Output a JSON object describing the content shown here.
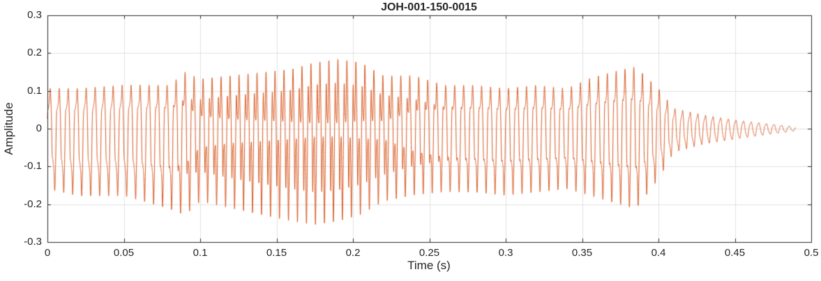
{
  "chart_data": {
    "type": "line",
    "title": "JOH-001-150-0015",
    "xlabel": "Time (s)",
    "ylabel": "Amplitude",
    "xlim": [
      0,
      0.5
    ],
    "ylim": [
      -0.3,
      0.3
    ],
    "xticks": [
      0,
      0.05,
      0.1,
      0.15,
      0.2,
      0.25,
      0.3,
      0.35,
      0.4,
      0.45,
      0.5
    ],
    "xtick_labels": [
      "0",
      "0.05",
      "0.1",
      "0.15",
      "0.2",
      "0.25",
      "0.3",
      "0.35",
      "0.4",
      "0.45",
      "0.5"
    ],
    "yticks": [
      -0.3,
      -0.2,
      -0.1,
      0,
      0.1,
      0.2,
      0.3
    ],
    "ytick_labels": [
      "-0.3",
      "-0.2",
      "-0.1",
      "0",
      "0.1",
      "0.2",
      "0.3"
    ],
    "grid": true,
    "legend": "none",
    "colors": {
      "line": "#D95319",
      "grid": "#E2E2E2",
      "axis": "#262626",
      "text": "#262626",
      "background": "#FFFFFF"
    },
    "waveform": {
      "signal_end_s": 0.49,
      "harmonic_phase": 1.2,
      "envelope": [
        {
          "t": 0.0,
          "hi": 0.12,
          "lo": -0.18,
          "h2": 0.25,
          "f": 170
        },
        {
          "t": 0.02,
          "hi": 0.12,
          "lo": -0.2,
          "h2": 0.25,
          "f": 170
        },
        {
          "t": 0.05,
          "hi": 0.13,
          "lo": -0.2,
          "h2": 0.25,
          "f": 170
        },
        {
          "t": 0.08,
          "hi": 0.13,
          "lo": -0.24,
          "h2": 0.3,
          "f": 170
        },
        {
          "t": 0.09,
          "hi": 0.17,
          "lo": -0.26,
          "h2": 0.4,
          "f": 170
        },
        {
          "t": 0.1,
          "hi": 0.15,
          "lo": -0.22,
          "h2": 0.6,
          "f": 170
        },
        {
          "t": 0.12,
          "hi": 0.16,
          "lo": -0.24,
          "h2": 0.7,
          "f": 170
        },
        {
          "t": 0.14,
          "hi": 0.17,
          "lo": -0.26,
          "h2": 0.75,
          "f": 170
        },
        {
          "t": 0.16,
          "hi": 0.18,
          "lo": -0.28,
          "h2": 0.8,
          "f": 170
        },
        {
          "t": 0.175,
          "hi": 0.2,
          "lo": -0.29,
          "h2": 0.85,
          "f": 170
        },
        {
          "t": 0.19,
          "hi": 0.21,
          "lo": -0.28,
          "h2": 0.85,
          "f": 170
        },
        {
          "t": 0.205,
          "hi": 0.2,
          "lo": -0.26,
          "h2": 0.8,
          "f": 170
        },
        {
          "t": 0.22,
          "hi": 0.16,
          "lo": -0.22,
          "h2": 0.75,
          "f": 170
        },
        {
          "t": 0.24,
          "hi": 0.16,
          "lo": -0.2,
          "h2": 0.5,
          "f": 170
        },
        {
          "t": 0.26,
          "hi": 0.13,
          "lo": -0.19,
          "h2": 0.35,
          "f": 170
        },
        {
          "t": 0.28,
          "hi": 0.13,
          "lo": -0.19,
          "h2": 0.3,
          "f": 170
        },
        {
          "t": 0.3,
          "hi": 0.12,
          "lo": -0.2,
          "h2": 0.3,
          "f": 170
        },
        {
          "t": 0.32,
          "hi": 0.13,
          "lo": -0.19,
          "h2": 0.3,
          "f": 170
        },
        {
          "t": 0.34,
          "hi": 0.12,
          "lo": -0.18,
          "h2": 0.3,
          "f": 170
        },
        {
          "t": 0.355,
          "hi": 0.15,
          "lo": -0.2,
          "h2": 0.3,
          "f": 170
        },
        {
          "t": 0.37,
          "hi": 0.17,
          "lo": -0.22,
          "h2": 0.3,
          "f": 172
        },
        {
          "t": 0.385,
          "hi": 0.185,
          "lo": -0.24,
          "h2": 0.3,
          "f": 175
        },
        {
          "t": 0.4,
          "hi": 0.12,
          "lo": -0.15,
          "h2": 0.25,
          "f": 185
        },
        {
          "t": 0.41,
          "hi": 0.06,
          "lo": -0.07,
          "h2": 0.2,
          "f": 200
        },
        {
          "t": 0.43,
          "hi": 0.04,
          "lo": -0.045,
          "h2": 0.15,
          "f": 200
        },
        {
          "t": 0.45,
          "hi": 0.025,
          "lo": -0.03,
          "h2": 0.1,
          "f": 200
        },
        {
          "t": 0.47,
          "hi": 0.015,
          "lo": -0.018,
          "h2": 0.1,
          "f": 200
        },
        {
          "t": 0.49,
          "hi": 0.005,
          "lo": -0.006,
          "h2": 0.1,
          "f": 200
        }
      ]
    }
  }
}
